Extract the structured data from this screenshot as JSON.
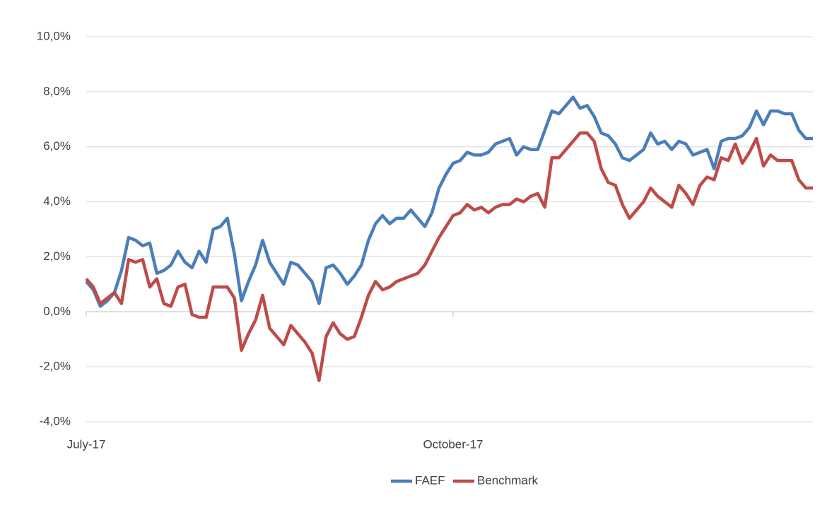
{
  "chart_data": {
    "type": "line",
    "categories": [
      "July-17",
      null,
      null,
      null,
      null,
      null,
      null,
      null,
      null,
      null,
      null,
      null,
      null,
      null,
      null,
      null,
      null,
      null,
      null,
      null,
      null,
      null,
      null,
      null,
      null,
      null,
      null,
      null,
      null,
      null,
      null,
      null,
      null,
      null,
      null,
      null,
      null,
      null,
      null,
      null,
      null,
      null,
      null,
      null,
      null,
      null,
      null,
      null,
      null,
      null,
      null,
      null,
      "October-17",
      null,
      null,
      null,
      null,
      null,
      null,
      null,
      null,
      null,
      null,
      null,
      null,
      null,
      null,
      null,
      null,
      null,
      null,
      null,
      null,
      null,
      null,
      null,
      null,
      null,
      null,
      null,
      null,
      null,
      null,
      null,
      null,
      null,
      null,
      null,
      null,
      null,
      null,
      null,
      null,
      null,
      null,
      null,
      null,
      null,
      null,
      null,
      null,
      null,
      null,
      null
    ],
    "series": [
      {
        "name": "FAEF",
        "color": "#4a7ebb",
        "values": [
          1.1,
          0.8,
          0.2,
          0.4,
          0.7,
          1.5,
          2.7,
          2.6,
          2.4,
          2.5,
          1.4,
          1.5,
          1.7,
          2.2,
          1.8,
          1.6,
          2.2,
          1.8,
          3.0,
          3.1,
          3.4,
          2.1,
          0.4,
          1.1,
          1.7,
          2.6,
          1.8,
          1.4,
          1.0,
          1.8,
          1.7,
          1.4,
          1.1,
          0.3,
          1.6,
          1.7,
          1.4,
          1.0,
          1.3,
          1.7,
          2.6,
          3.2,
          3.5,
          3.2,
          3.4,
          3.4,
          3.7,
          3.4,
          3.1,
          3.6,
          4.5,
          5.0,
          5.4,
          5.5,
          5.8,
          5.7,
          5.7,
          5.8,
          6.1,
          6.2,
          6.3,
          5.7,
          6.0,
          5.9,
          5.9,
          6.6,
          7.3,
          7.2,
          7.5,
          7.8,
          7.4,
          7.5,
          7.1,
          6.5,
          6.4,
          6.1,
          5.6,
          5.5,
          5.7,
          5.9,
          6.5,
          6.1,
          6.2,
          5.9,
          6.2,
          6.1,
          5.7,
          5.8,
          5.9,
          5.2,
          6.2,
          6.3,
          6.3,
          6.4,
          6.7,
          7.3,
          6.8,
          7.3,
          7.3,
          7.2,
          7.2,
          6.6,
          6.3,
          6.3
        ]
      },
      {
        "name": "Benchmark",
        "color": "#be4b48",
        "values": [
          1.2,
          0.9,
          0.3,
          0.5,
          0.7,
          0.3,
          1.9,
          1.8,
          1.9,
          0.9,
          1.2,
          0.3,
          0.2,
          0.9,
          1.0,
          -0.1,
          -0.2,
          -0.2,
          0.9,
          0.9,
          0.9,
          0.5,
          -1.4,
          -0.8,
          -0.3,
          0.6,
          -0.6,
          -0.9,
          -1.2,
          -0.5,
          -0.8,
          -1.1,
          -1.5,
          -2.5,
          -0.9,
          -0.4,
          -0.8,
          -1.0,
          -0.9,
          -0.2,
          0.6,
          1.1,
          0.8,
          0.9,
          1.1,
          1.2,
          1.3,
          1.4,
          1.7,
          2.2,
          2.7,
          3.1,
          3.5,
          3.6,
          3.9,
          3.7,
          3.8,
          3.6,
          3.8,
          3.9,
          3.9,
          4.1,
          4.0,
          4.2,
          4.3,
          3.8,
          5.6,
          5.6,
          5.9,
          6.2,
          6.5,
          6.5,
          6.2,
          5.2,
          4.7,
          4.6,
          3.9,
          3.4,
          3.7,
          4.0,
          4.5,
          4.2,
          4.0,
          3.8,
          4.6,
          4.3,
          3.9,
          4.6,
          4.9,
          4.8,
          5.6,
          5.5,
          6.1,
          5.4,
          5.8,
          6.3,
          5.3,
          5.7,
          5.5,
          5.5,
          5.5,
          4.8,
          4.5,
          4.5
        ]
      }
    ],
    "ylim": [
      -4,
      10
    ],
    "yticks": [
      {
        "value": -4,
        "label": "-4,0%"
      },
      {
        "value": -2,
        "label": "-2,0%"
      },
      {
        "value": 0,
        "label": "0,0%"
      },
      {
        "value": 2,
        "label": "2,0%"
      },
      {
        "value": 4,
        "label": "4,0%"
      },
      {
        "value": 6,
        "label": "6,0%"
      },
      {
        "value": 8,
        "label": "8,0%"
      },
      {
        "value": 10,
        "label": "10,0%"
      }
    ],
    "grid": true,
    "legend": "bottom"
  }
}
